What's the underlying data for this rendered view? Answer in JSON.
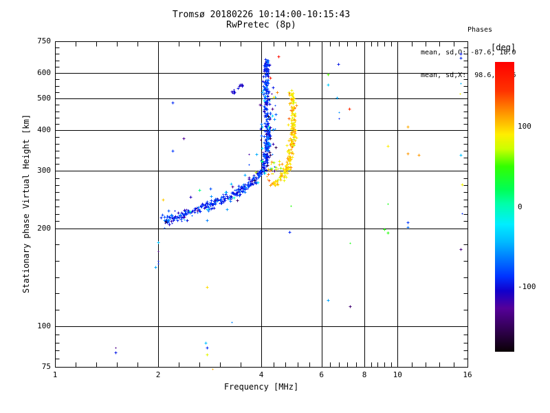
{
  "header": {
    "title_line1": "Tromsø 20180226 10:14:00-10:15:43",
    "title_line2": "RwPretec (8p)",
    "stats_title": "Phases",
    "stats_line1": "mean, sd,O: -87.6, 18.0",
    "stats_line2": "mean, sd,X:  98.6, 19.6"
  },
  "chart_data": {
    "type": "scatter",
    "title": "Tromsø 20180226 10:14:00-10:15:43",
    "subtitle": "RwPretec (8p)",
    "xlabel": "Frequency [MHz]",
    "ylabel": "Stationary phase Virtual Height [km]",
    "x_scale": "log",
    "y_scale": "log",
    "xlim": [
      1,
      16
    ],
    "ylim": [
      75,
      750
    ],
    "x_major_ticks": [
      1,
      2,
      4,
      6,
      8,
      10,
      16
    ],
    "x_gridlines": [
      2,
      4,
      6,
      8,
      10
    ],
    "y_major_ticks": [
      750,
      600,
      500,
      400,
      300,
      200,
      100,
      75
    ],
    "y_gridlines": [
      600,
      500,
      400,
      300,
      200,
      100
    ],
    "y_minor_counts": [
      4,
      3,
      4,
      5,
      7,
      5,
      4
    ],
    "grid": true,
    "marker": "plus",
    "phase_stats": {
      "O": {
        "mean": -87.6,
        "sd": 18.0
      },
      "X": {
        "mean": 98.6,
        "sd": 19.6
      }
    },
    "colorbar": {
      "label": "[deg]",
      "ticks": [
        100,
        0,
        -100
      ],
      "range": [
        180,
        -180
      ],
      "stops": [
        [
          0.0,
          "#ff0000"
        ],
        [
          0.1,
          "#ff3300"
        ],
        [
          0.18,
          "#ff9900"
        ],
        [
          0.25,
          "#ffee00"
        ],
        [
          0.3,
          "#ccff00"
        ],
        [
          0.36,
          "#33ff00"
        ],
        [
          0.44,
          "#00ff55"
        ],
        [
          0.49,
          "#00ffaa"
        ],
        [
          0.56,
          "#00eeff"
        ],
        [
          0.62,
          "#00bbff"
        ],
        [
          0.68,
          "#0077ff"
        ],
        [
          0.74,
          "#0033ff"
        ],
        [
          0.79,
          "#1100cc"
        ],
        [
          0.85,
          "#550099"
        ],
        [
          0.92,
          "#330055"
        ],
        [
          1.0,
          "#0a0005"
        ]
      ]
    },
    "traces": [
      {
        "name": "O-mode-main",
        "phase_mean": -87.6,
        "phase_sd": 14,
        "n": 560,
        "sx": 2.2,
        "sy": 3.2,
        "anchors": [
          [
            2.07,
            212
          ],
          [
            2.2,
            214
          ],
          [
            2.35,
            220
          ],
          [
            2.52,
            227
          ],
          [
            2.7,
            233
          ],
          [
            2.9,
            238
          ],
          [
            3.1,
            247
          ],
          [
            3.33,
            255
          ],
          [
            3.56,
            265
          ],
          [
            3.77,
            279
          ],
          [
            3.9,
            289
          ],
          [
            4.01,
            300
          ],
          [
            4.09,
            315
          ],
          [
            4.14,
            344
          ],
          [
            4.16,
            378
          ],
          [
            4.16,
            417
          ],
          [
            4.14,
            459
          ],
          [
            4.14,
            505
          ],
          [
            4.13,
            555
          ],
          [
            4.13,
            597
          ],
          [
            4.14,
            635
          ],
          [
            4.16,
            655
          ]
        ]
      },
      {
        "name": "O-mode-halo",
        "phase_mean": -85,
        "phase_sd": 40,
        "n": 85,
        "sx": 7,
        "sy": 9,
        "anchors": [
          [
            2.07,
            212
          ],
          [
            2.35,
            220
          ],
          [
            2.7,
            233
          ],
          [
            3.1,
            247
          ],
          [
            3.56,
            265
          ],
          [
            3.9,
            289
          ],
          [
            4.05,
            310
          ],
          [
            4.14,
            380
          ],
          [
            4.15,
            460
          ],
          [
            4.14,
            560
          ]
        ]
      },
      {
        "name": "X-mode-main",
        "phase_mean": 98.6,
        "phase_sd": 13,
        "n": 230,
        "sx": 2.2,
        "sy": 3.0,
        "anchors": [
          [
            4.35,
            272
          ],
          [
            4.49,
            280
          ],
          [
            4.64,
            294
          ],
          [
            4.74,
            307
          ],
          [
            4.81,
            325
          ],
          [
            4.87,
            345
          ],
          [
            4.92,
            371
          ],
          [
            4.94,
            402
          ],
          [
            4.96,
            433
          ],
          [
            4.96,
            464
          ],
          [
            4.94,
            488
          ],
          [
            4.9,
            525
          ]
        ]
      },
      {
        "name": "X-mode-halo",
        "phase_mean": 95,
        "phase_sd": 28,
        "n": 22,
        "sx": 6,
        "sy": 6,
        "anchors": [
          [
            4.15,
            292
          ],
          [
            4.35,
            300
          ],
          [
            4.55,
            315
          ]
        ]
      },
      {
        "name": "E-streak",
        "phase_mean": -105,
        "phase_sd": 5,
        "n": 14,
        "sx": 1.5,
        "sy": 1.5,
        "anchors": [
          [
            3.29,
            525
          ],
          [
            3.42,
            540
          ],
          [
            3.56,
            556
          ]
        ]
      },
      {
        "name": "inter-trace",
        "phase_mean": -95,
        "phase_sd": 45,
        "n": 16,
        "sx": 3,
        "sy": 8,
        "anchors": [
          [
            4.27,
            300
          ],
          [
            4.3,
            380
          ],
          [
            4.33,
            450
          ]
        ]
      }
    ],
    "stray_points": [
      [
        1.5,
        86,
        -130
      ],
      [
        1.5,
        83,
        -95
      ],
      [
        2.0,
        181,
        -40
      ],
      [
        2.0,
        170,
        -130
      ],
      [
        2.0,
        159,
        -95
      ],
      [
        2.0,
        156,
        -90
      ],
      [
        1.96,
        152,
        -50
      ],
      [
        2.07,
        245,
        100
      ],
      [
        2.2,
        486,
        -90
      ],
      [
        2.37,
        377,
        -125
      ],
      [
        2.2,
        346,
        -85
      ],
      [
        2.78,
        132,
        95
      ],
      [
        3.28,
        103,
        -60
      ],
      [
        2.75,
        89,
        -40
      ],
      [
        2.78,
        86,
        -90
      ],
      [
        2.78,
        82,
        80
      ],
      [
        2.88,
        74,
        110
      ],
      [
        4.5,
        674,
        170
      ],
      [
        4.25,
        580,
        160
      ],
      [
        4.44,
        523,
        120
      ],
      [
        4.34,
        506,
        90
      ],
      [
        4.87,
        234,
        45
      ],
      [
        4.83,
        195,
        -90
      ],
      [
        6.71,
        639,
        -95
      ],
      [
        6.26,
        594,
        55
      ],
      [
        6.26,
        552,
        -35
      ],
      [
        6.65,
        503,
        -50
      ],
      [
        6.74,
        454,
        -55
      ],
      [
        7.22,
        466,
        150
      ],
      [
        6.74,
        435,
        -90
      ],
      [
        10.7,
        410,
        110
      ],
      [
        9.35,
        358,
        90
      ],
      [
        10.7,
        339,
        115
      ],
      [
        11.5,
        336,
        115
      ],
      [
        15.3,
        336,
        -40
      ],
      [
        15.4,
        272,
        85
      ],
      [
        9.35,
        238,
        40
      ],
      [
        9.15,
        199,
        45
      ],
      [
        9.35,
        194,
        45
      ],
      [
        10.7,
        208,
        -85
      ],
      [
        10.7,
        201,
        -70
      ],
      [
        15.3,
        687,
        -95
      ],
      [
        15.3,
        666,
        -90
      ],
      [
        15.3,
        557,
        -45
      ],
      [
        15.2,
        518,
        85
      ],
      [
        15.4,
        222,
        -90
      ],
      [
        15.3,
        172,
        -135
      ],
      [
        6.26,
        120,
        -50
      ],
      [
        7.26,
        115,
        -140
      ],
      [
        7.26,
        180,
        40
      ]
    ]
  }
}
